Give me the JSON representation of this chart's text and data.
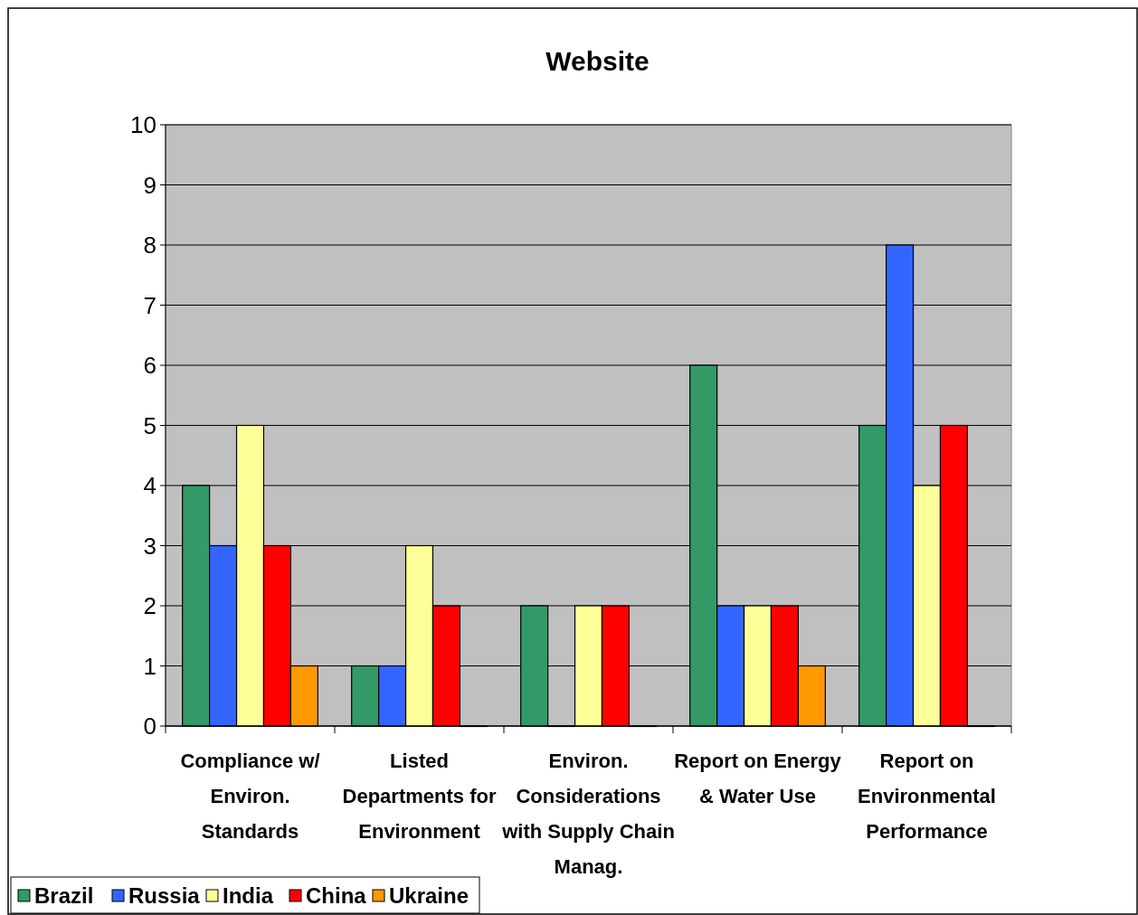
{
  "chart_data": {
    "type": "bar",
    "title": "Website",
    "categories": [
      "Compliance w/ Environ. Standards",
      "Listed Departments for Environment",
      "Environ. Considerations with Supply Chain Manag.",
      "Report on Energy & Water Use",
      "Report on Environmental Performance"
    ],
    "series": [
      {
        "name": "Brazil",
        "color": "#339966",
        "values": [
          4,
          1,
          2,
          6,
          5
        ]
      },
      {
        "name": "Russia",
        "color": "#3366ff",
        "values": [
          3,
          1,
          0,
          2,
          8
        ]
      },
      {
        "name": "India",
        "color": "#ffff99",
        "values": [
          5,
          3,
          2,
          2,
          4
        ]
      },
      {
        "name": "China",
        "color": "#ff0000",
        "values": [
          3,
          2,
          2,
          2,
          5
        ]
      },
      {
        "name": "Ukraine",
        "color": "#ff9900",
        "values": [
          1,
          0,
          0,
          1,
          0
        ]
      }
    ],
    "ylim": [
      0,
      10
    ],
    "yticks": [
      0,
      1,
      2,
      3,
      4,
      5,
      6,
      7,
      8,
      9,
      10
    ],
    "grid": "y",
    "legend": "bottom left"
  }
}
